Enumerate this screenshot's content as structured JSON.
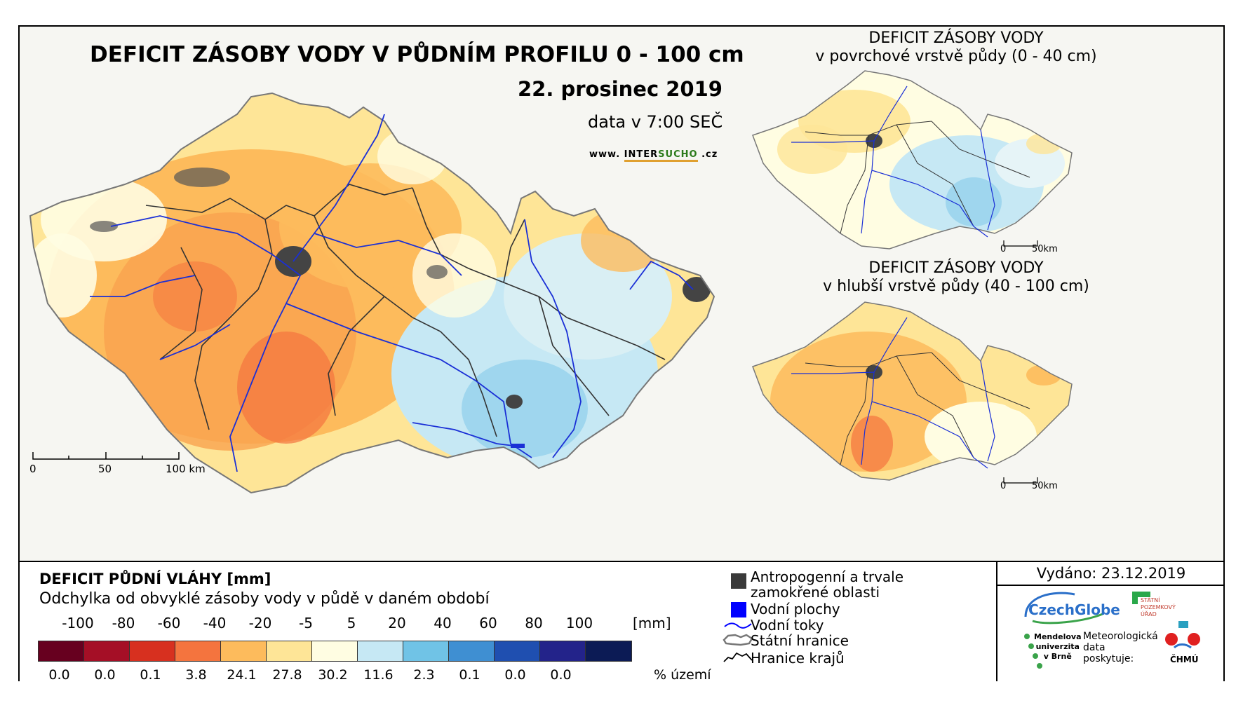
{
  "header": {
    "title": "DEFICIT ZÁSOBY VODY V PŮDNÍM PROFILU 0 - 100 cm",
    "date": "22. prosinec 2019",
    "time": "data v 7:00 SEČ",
    "website_prefix": "www. ",
    "website_brand_a": "INTER",
    "website_brand_b": "SUCHO",
    "website_suffix": " .cz"
  },
  "inset_top": {
    "title_line1": "DEFICIT ZÁSOBY VODY",
    "title_line2": "v povrchové vrstvě půdy (0 - 40 cm)",
    "scale_start": "0",
    "scale_end": "50km"
  },
  "inset_bottom": {
    "title_line1": "DEFICIT ZÁSOBY VODY",
    "title_line2": "v hlubší vrstvě půdy (40 - 100 cm)",
    "scale_start": "0",
    "scale_end": "50km"
  },
  "main_scale": {
    "s0": "0",
    "s1": "50",
    "s2": "100 km"
  },
  "legend": {
    "title": "DEFICIT PŮDNÍ VLÁHY [mm]",
    "subtitle": "Odchylka od obvyklé zásoby vody v půdě v daném období",
    "thresholds": [
      "-100",
      "-80",
      "-60",
      "-40",
      "-20",
      "-5",
      "5",
      "20",
      "40",
      "60",
      "80",
      "100"
    ],
    "unit_mm": "[mm]",
    "classes": [
      {
        "color": "#67001f",
        "pct": "0.0"
      },
      {
        "color": "#a50f26",
        "pct": "0.0"
      },
      {
        "color": "#d7301f",
        "pct": "0.1"
      },
      {
        "color": "#f4743e",
        "pct": "3.8"
      },
      {
        "color": "#fdbb5c",
        "pct": "24.1"
      },
      {
        "color": "#fee597",
        "pct": "27.8"
      },
      {
        "color": "#fffde2",
        "pct": "30.2"
      },
      {
        "color": "#c6e8f4",
        "pct": "11.6"
      },
      {
        "color": "#70c3e6",
        "pct": "2.3"
      },
      {
        "color": "#3f8fd2",
        "pct": "0.1"
      },
      {
        "color": "#1f4fb0",
        "pct": "0.0"
      },
      {
        "color": "#23238a",
        "pct": "0.0"
      },
      {
        "color": "#0c1b55",
        "pct": ""
      }
    ],
    "unit_pct": "% území"
  },
  "symbols": {
    "anthropogenic_line1": "Antropogenní a trvale",
    "anthropogenic_line2": "zamokřené oblasti",
    "water_bodies": "Vodní plochy",
    "rivers": "Vodní toky",
    "state_border": "Státní hranice",
    "region_border": "Hranice krajů"
  },
  "credits": {
    "issued": "Vydáno: 23.12.2019",
    "czechglobe": "CzechGlobe",
    "spu_line1": "STÁTNÍ",
    "spu_line2": "POZEMKOVÝ",
    "spu_line3": "ÚŘAD",
    "mendel_line1": "Mendelova",
    "mendel_line2": "univerzita",
    "mendel_line3": "v Brně",
    "met_line1": "Meteorologická",
    "met_line2": "data",
    "met_line3": "poskytuje:",
    "chmu": "ČHMÚ"
  }
}
